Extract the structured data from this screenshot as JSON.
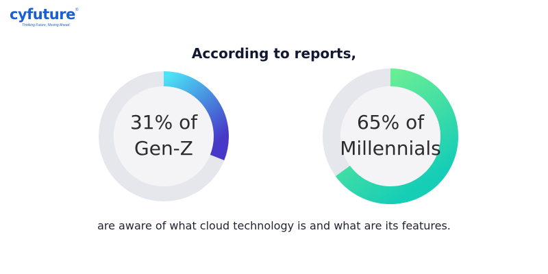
{
  "logo": {
    "name": "cyfuture",
    "tagline": "Thinking Future, Moving Ahead",
    "reg": "®"
  },
  "headline": "According to reports,",
  "caption": "are aware of what cloud technology is and what are its features.",
  "colors": {
    "track": "#e6e7ec",
    "inner": "#f4f4f6",
    "genz_start": "#4be4f7",
    "genz_end": "#4738c8",
    "millennials_start": "#7af58e",
    "millennials_end": "#16cdb6"
  },
  "chart_data": [
    {
      "type": "pie",
      "style": "donut",
      "label_line1": "31% of",
      "label_line2": "Gen-Z",
      "value": 31,
      "max": 100
    },
    {
      "type": "pie",
      "style": "donut",
      "label_line1": "65% of",
      "label_line2": "Millennials",
      "value": 65,
      "max": 100
    }
  ]
}
